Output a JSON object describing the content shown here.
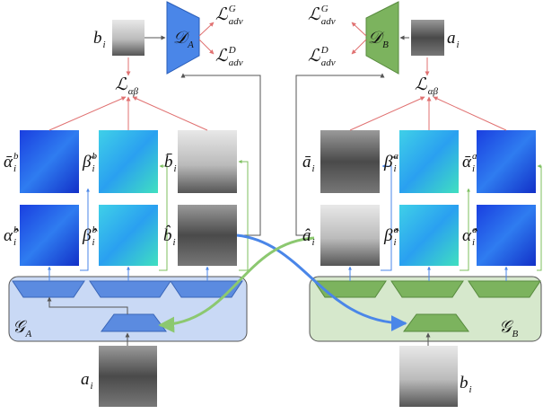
{
  "labels": [
    {
      "base": "b",
      "sub": "i"
    },
    {
      "base": "𝒟",
      "sub": "A"
    },
    {
      "base": "ℒ",
      "sup": "G",
      "sub": "adv"
    },
    {
      "base": "ℒ",
      "sup": "D",
      "sub": "adv"
    },
    {
      "base": "ℒ",
      "sub": "αβ"
    },
    {
      "base": "ᾱ",
      "sup": "b",
      "sub": "i"
    },
    {
      "base": "β̄",
      "sup": "b",
      "sub": "i"
    },
    {
      "base": "b̄",
      "sub": "i"
    },
    {
      "base": "α̂",
      "sup": "b",
      "sub": "i"
    },
    {
      "base": "β̂",
      "sup": "b",
      "sub": "i"
    },
    {
      "base": "b̂",
      "sub": "i"
    },
    {
      "base": "𝒢",
      "sub": "A"
    },
    {
      "base": "a",
      "sub": "i"
    },
    {
      "base": "ℒ",
      "sup": "G",
      "sub": "adv"
    },
    {
      "base": "ℒ",
      "sup": "D",
      "sub": "adv"
    },
    {
      "base": "𝒟",
      "sub": "B"
    },
    {
      "base": "a",
      "sub": "i"
    },
    {
      "base": "ℒ",
      "sub": "αβ"
    },
    {
      "base": "ā",
      "sub": "i"
    },
    {
      "base": "β̄",
      "sup": "a",
      "sub": "i"
    },
    {
      "base": "ᾱ",
      "sup": "a",
      "sub": "i"
    },
    {
      "base": "â",
      "sub": "i"
    },
    {
      "base": "β̂",
      "sup": "a",
      "sub": "i"
    },
    {
      "base": "α̂",
      "sup": "a",
      "sub": "i"
    },
    {
      "base": "𝒢",
      "sub": "B"
    },
    {
      "base": "b",
      "sub": "i"
    }
  ]
}
